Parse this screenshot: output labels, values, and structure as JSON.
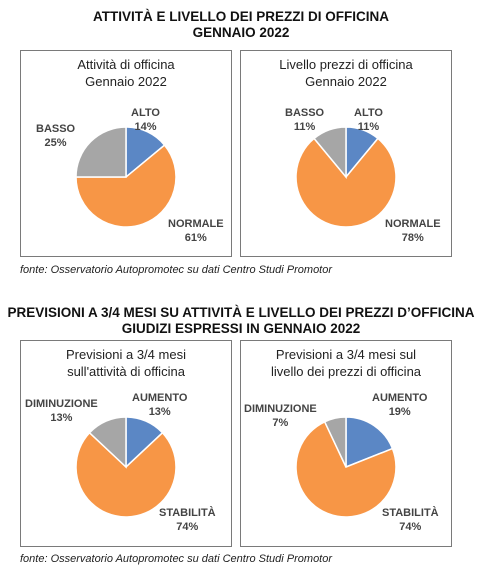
{
  "section1": {
    "title_line1": "ATTIVITÀ E LIVELLO DEI PREZZI DI OFFICINA",
    "title_line2": "GENNAIO 2022",
    "source": "fonte: Osservatorio Autopromotec su dati Centro Studi Promotor"
  },
  "section2": {
    "title_line1": "PREVISIONI A 3/4 MESI SU ATTIVITÀ E LIVELLO DEI PREZZI D’OFFICINA",
    "title_line2": "GIUDIZI ESPRESSI IN GENNAIO 2022",
    "source": "fonte: Osservatorio Autopromotec su dati Centro Studi Promotor"
  },
  "colors": {
    "blue": "#5b87c5",
    "orange": "#f79646",
    "gray": "#a6a6a6"
  },
  "chart_data": [
    {
      "type": "pie",
      "title_line1": "Attività di officina",
      "title_line2": "Gennaio 2022",
      "slices": [
        {
          "name": "ALTO",
          "value": 14,
          "label": "14%"
        },
        {
          "name": "NORMALE",
          "value": 61,
          "label": "61%"
        },
        {
          "name": "BASSO",
          "value": 25,
          "label": "25%"
        }
      ]
    },
    {
      "type": "pie",
      "title_line1": "Livello prezzi di officina",
      "title_line2": "Gennaio 2022",
      "slices": [
        {
          "name": "ALTO",
          "value": 11,
          "label": "11%"
        },
        {
          "name": "NORMALE",
          "value": 78,
          "label": "78%"
        },
        {
          "name": "BASSO",
          "value": 11,
          "label": "11%"
        }
      ]
    },
    {
      "type": "pie",
      "title_line1": "Previsioni a 3/4 mesi",
      "title_line2": "sull'attività di officina",
      "slices": [
        {
          "name": "AUMENTO",
          "value": 13,
          "label": "13%"
        },
        {
          "name": "STABILITÀ",
          "value": 74,
          "label": "74%"
        },
        {
          "name": "DIMINUZIONE",
          "value": 13,
          "label": "13%"
        }
      ]
    },
    {
      "type": "pie",
      "title_line1": "Previsioni a 3/4 mesi sul",
      "title_line2": "livello dei prezzi di officina",
      "slices": [
        {
          "name": "AUMENTO",
          "value": 19,
          "label": "19%"
        },
        {
          "name": "STABILITÀ",
          "value": 74,
          "label": "74%"
        },
        {
          "name": "DIMINUZIONE",
          "value": 7,
          "label": "7%"
        }
      ]
    }
  ]
}
